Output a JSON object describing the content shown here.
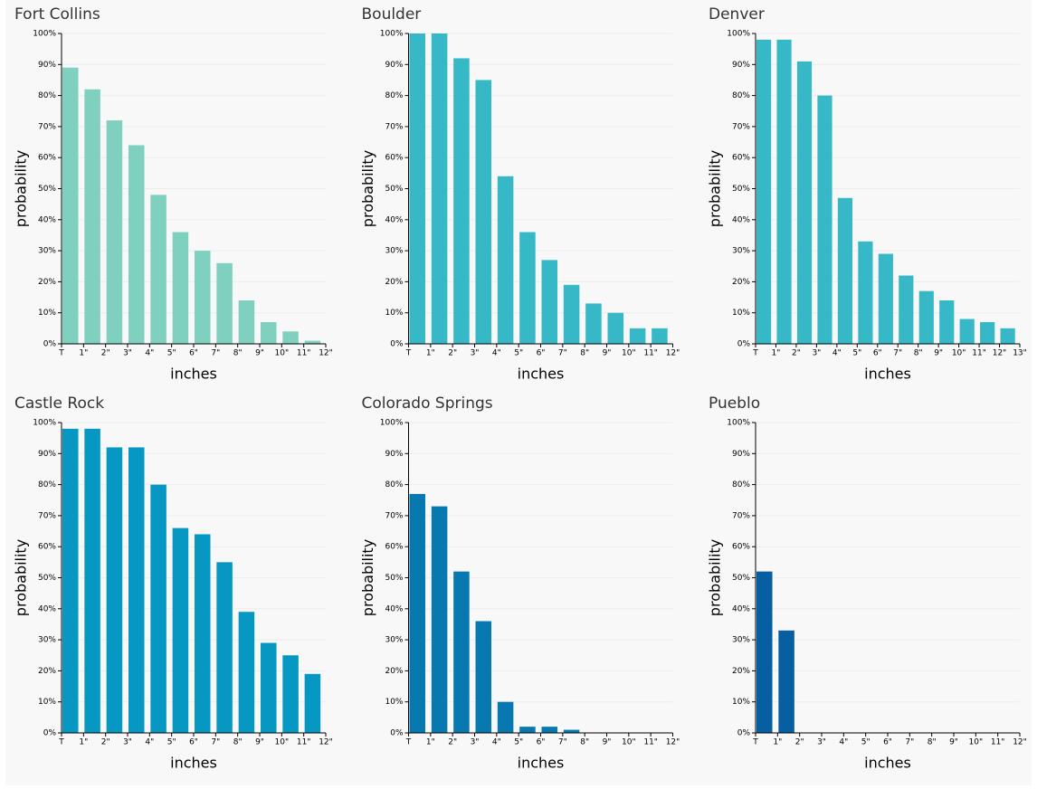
{
  "chart_data": [
    {
      "type": "histogram",
      "title": "Fort Collins",
      "x_label": "inches",
      "y_label": "probability",
      "color": "#80d0bf",
      "bins": [
        "T",
        "1\"",
        "2\"",
        "3\"",
        "4\"",
        "5\"",
        "6\"",
        "7\"",
        "8\"",
        "9\"",
        "10\"",
        "11\"",
        "12\""
      ],
      "values": [
        89,
        82,
        72,
        64,
        48,
        36,
        30,
        26,
        14,
        7,
        4,
        1
      ],
      "ylim": [
        0,
        100
      ],
      "yticks": [
        {
          "value": 0,
          "label": "0%"
        },
        {
          "value": 10,
          "label": "10%"
        },
        {
          "value": 20,
          "label": "20%"
        },
        {
          "value": 30,
          "label": "30%"
        },
        {
          "value": 40,
          "label": "40%"
        },
        {
          "value": 50,
          "label": "50%"
        },
        {
          "value": 60,
          "label": "60%"
        },
        {
          "value": 70,
          "label": "70%"
        },
        {
          "value": 80,
          "label": "80%"
        },
        {
          "value": 90,
          "label": "90%"
        },
        {
          "value": 100,
          "label": "100%"
        }
      ],
      "grid": true
    },
    {
      "type": "histogram",
      "title": "Boulder",
      "x_label": "inches",
      "y_label": "probability",
      "color": "#36b8c6",
      "bins": [
        "T",
        "1\"",
        "2\"",
        "3\"",
        "4\"",
        "5\"",
        "6\"",
        "7\"",
        "8\"",
        "9\"",
        "10\"",
        "11\"",
        "12\""
      ],
      "values": [
        100,
        100,
        92,
        85,
        54,
        36,
        27,
        19,
        13,
        10,
        5,
        5
      ],
      "ylim": [
        0,
        100
      ],
      "yticks": [
        {
          "value": 0,
          "label": "0%"
        },
        {
          "value": 10,
          "label": "10%"
        },
        {
          "value": 20,
          "label": "20%"
        },
        {
          "value": 30,
          "label": "30%"
        },
        {
          "value": 40,
          "label": "40%"
        },
        {
          "value": 50,
          "label": "50%"
        },
        {
          "value": 60,
          "label": "60%"
        },
        {
          "value": 70,
          "label": "70%"
        },
        {
          "value": 80,
          "label": "80%"
        },
        {
          "value": 90,
          "label": "90%"
        },
        {
          "value": 100,
          "label": "100%"
        }
      ],
      "grid": true
    },
    {
      "type": "histogram",
      "title": "Denver",
      "x_label": "inches",
      "y_label": "probability",
      "color": "#36b8c6",
      "bins": [
        "T",
        "1\"",
        "2\"",
        "3\"",
        "4\"",
        "5\"",
        "6\"",
        "7\"",
        "8\"",
        "9\"",
        "10\"",
        "11\"",
        "12\"",
        "13\""
      ],
      "values": [
        98,
        98,
        91,
        80,
        47,
        33,
        29,
        22,
        17,
        14,
        8,
        7,
        5
      ],
      "ylim": [
        0,
        100
      ],
      "yticks": [
        {
          "value": 0,
          "label": "0%"
        },
        {
          "value": 10,
          "label": "10%"
        },
        {
          "value": 20,
          "label": "20%"
        },
        {
          "value": 30,
          "label": "30%"
        },
        {
          "value": 40,
          "label": "40%"
        },
        {
          "value": 50,
          "label": "50%"
        },
        {
          "value": 60,
          "label": "60%"
        },
        {
          "value": 70,
          "label": "70%"
        },
        {
          "value": 80,
          "label": "80%"
        },
        {
          "value": 90,
          "label": "90%"
        },
        {
          "value": 100,
          "label": "100%"
        }
      ],
      "grid": true
    },
    {
      "type": "histogram",
      "title": "Castle Rock",
      "x_label": "inches",
      "y_label": "probability",
      "color": "#0797c3",
      "bins": [
        "T",
        "1\"",
        "2\"",
        "3\"",
        "4\"",
        "5\"",
        "6\"",
        "7\"",
        "8\"",
        "9\"",
        "10\"",
        "11\"",
        "12\""
      ],
      "values": [
        98,
        98,
        92,
        92,
        80,
        66,
        64,
        55,
        39,
        29,
        25,
        19
      ],
      "ylim": [
        0,
        100
      ],
      "yticks": [
        {
          "value": 0,
          "label": "0%"
        },
        {
          "value": 10,
          "label": "10%"
        },
        {
          "value": 20,
          "label": "20%"
        },
        {
          "value": 30,
          "label": "30%"
        },
        {
          "value": 40,
          "label": "40%"
        },
        {
          "value": 50,
          "label": "50%"
        },
        {
          "value": 60,
          "label": "60%"
        },
        {
          "value": 70,
          "label": "70%"
        },
        {
          "value": 80,
          "label": "80%"
        },
        {
          "value": 90,
          "label": "90%"
        },
        {
          "value": 100,
          "label": "100%"
        }
      ],
      "grid": true
    },
    {
      "type": "histogram",
      "title": "Colorado Springs",
      "x_label": "inches",
      "y_label": "probability",
      "color": "#0779b0",
      "bins": [
        "T",
        "1\"",
        "2\"",
        "3\"",
        "4\"",
        "5\"",
        "6\"",
        "7\"",
        "8\"",
        "9\"",
        "10\"",
        "11\"",
        "12\""
      ],
      "values": [
        77,
        73,
        52,
        36,
        10,
        2,
        2,
        1,
        0,
        0,
        0,
        0
      ],
      "ylim": [
        0,
        100
      ],
      "yticks": [
        {
          "value": 0,
          "label": "0%"
        },
        {
          "value": 10,
          "label": "10%"
        },
        {
          "value": 20,
          "label": "20%"
        },
        {
          "value": 30,
          "label": "30%"
        },
        {
          "value": 40,
          "label": "40%"
        },
        {
          "value": 50,
          "label": "50%"
        },
        {
          "value": 60,
          "label": "60%"
        },
        {
          "value": 70,
          "label": "70%"
        },
        {
          "value": 80,
          "label": "80%"
        },
        {
          "value": 90,
          "label": "90%"
        },
        {
          "value": 100,
          "label": "100%"
        }
      ],
      "grid": true
    },
    {
      "type": "histogram",
      "title": "Pueblo",
      "x_label": "inches",
      "y_label": "probability",
      "color": "#065fa0",
      "bins": [
        "T",
        "1\"",
        "2\"",
        "3\"",
        "4\"",
        "5\"",
        "6\"",
        "7\"",
        "8\"",
        "9\"",
        "10\"",
        "11\"",
        "12\""
      ],
      "values": [
        52,
        33,
        0,
        0,
        0,
        0,
        0,
        0,
        0,
        0,
        0,
        0
      ],
      "ylim": [
        0,
        100
      ],
      "yticks": [
        {
          "value": 0,
          "label": "0%"
        },
        {
          "value": 10,
          "label": "10%"
        },
        {
          "value": 20,
          "label": "20%"
        },
        {
          "value": 30,
          "label": "30%"
        },
        {
          "value": 40,
          "label": "40%"
        },
        {
          "value": 50,
          "label": "50%"
        },
        {
          "value": 60,
          "label": "60%"
        },
        {
          "value": 70,
          "label": "70%"
        },
        {
          "value": 80,
          "label": "80%"
        },
        {
          "value": 90,
          "label": "90%"
        },
        {
          "value": 100,
          "label": "100%"
        }
      ],
      "grid": true
    }
  ]
}
